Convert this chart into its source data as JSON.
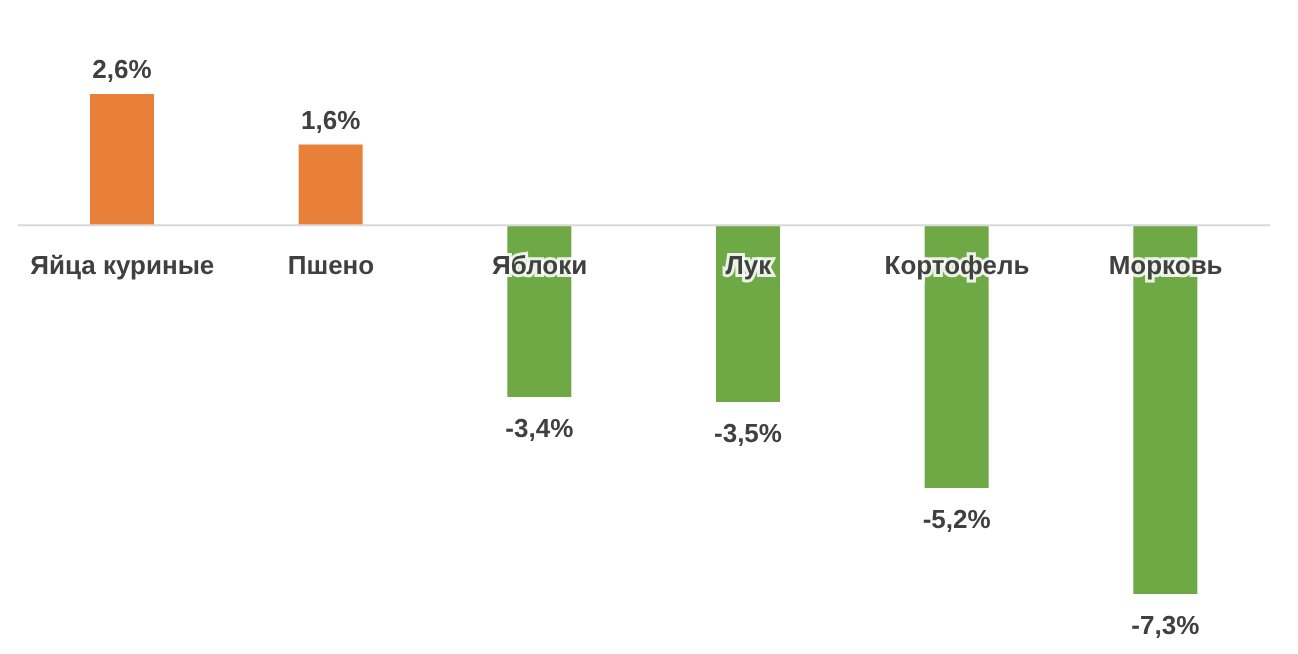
{
  "chart_data": {
    "type": "bar",
    "categories": [
      "Яйца куриные",
      "Пшено",
      "Яблоки",
      "Лук",
      "Кортофель",
      "Морковь"
    ],
    "values": [
      2.6,
      1.6,
      -3.4,
      -3.5,
      -5.2,
      -7.3
    ],
    "colors": [
      "#e8803a",
      "#e8803a",
      "#6fa945",
      "#6fa945",
      "#6fa945",
      "#6fa945"
    ],
    "value_labels": [
      "2,6%",
      "1,6%",
      "-3,4%",
      "-3,5%",
      "-5,2%",
      "-7,3%"
    ],
    "grid": false,
    "legend": false
  }
}
